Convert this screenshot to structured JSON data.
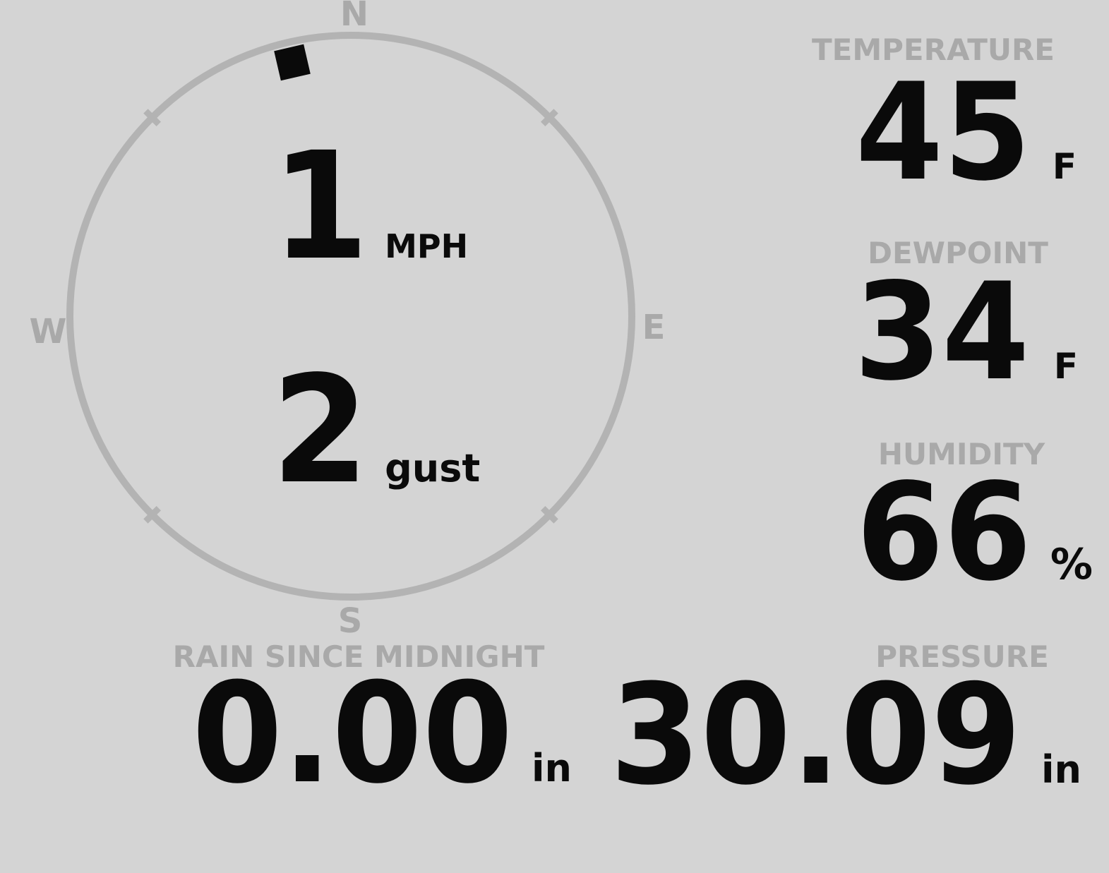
{
  "colors": {
    "background": "#d4d4d4",
    "muted": "#a9a9a9",
    "ring": "#b3b3b3",
    "value": "#0a0a0a"
  },
  "compass": {
    "cardinals": {
      "north": "N",
      "east": "E",
      "south": "S",
      "west": "W"
    },
    "wind_direction_deg": 347,
    "speed": {
      "value": "1",
      "unit": "MPH"
    },
    "gust": {
      "value": "2",
      "unit": "gust"
    }
  },
  "readings": {
    "temperature": {
      "label": "TEMPERATURE",
      "value": "45",
      "unit": "F"
    },
    "dewpoint": {
      "label": "DEWPOINT",
      "value": "34",
      "unit": "F"
    },
    "humidity": {
      "label": "HUMIDITY",
      "value": "66",
      "unit": "%"
    },
    "rain": {
      "label": "RAIN SINCE MIDNIGHT",
      "value": "0.00",
      "unit": "in"
    },
    "pressure": {
      "label": "PRESSURE",
      "value": "30.09",
      "unit": "in"
    }
  }
}
